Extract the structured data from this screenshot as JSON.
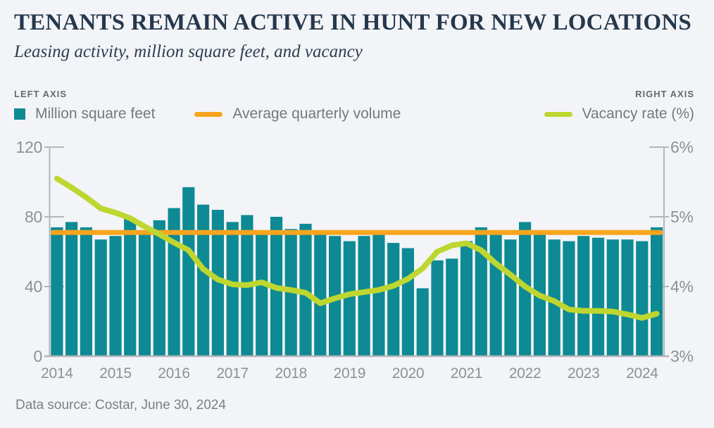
{
  "legend": {
    "left_axis_heading": "LEFT AXIS",
    "right_axis_heading": "RIGHT AXIS"
  },
  "footer": {
    "source": "Data source: Costar, June 30, 2024"
  },
  "chart_data": {
    "type": "bar+line",
    "title": "TENANTS REMAIN ACTIVE IN HUNT FOR NEW LOCATIONS",
    "subtitle": "Leasing activity, million square feet, and vacancy",
    "categories": [
      "2014 Q1",
      "2014 Q2",
      "2014 Q3",
      "2014 Q4",
      "2015 Q1",
      "2015 Q2",
      "2015 Q3",
      "2015 Q4",
      "2016 Q1",
      "2016 Q2",
      "2016 Q3",
      "2016 Q4",
      "2017 Q1",
      "2017 Q2",
      "2017 Q3",
      "2017 Q4",
      "2018 Q1",
      "2018 Q2",
      "2018 Q3",
      "2018 Q4",
      "2019 Q1",
      "2019 Q2",
      "2019 Q3",
      "2019 Q4",
      "2020 Q1",
      "2020 Q2",
      "2020 Q3",
      "2020 Q4",
      "2021 Q1",
      "2021 Q2",
      "2021 Q3",
      "2021 Q4",
      "2022 Q1",
      "2022 Q2",
      "2022 Q3",
      "2022 Q4",
      "2023 Q1",
      "2023 Q2",
      "2023 Q3",
      "2023 Q4",
      "2024 Q1",
      "2024 Q2"
    ],
    "series": {
      "bars": {
        "name": "Million square feet",
        "axis": "left",
        "color": "#0d8a94",
        "values": [
          74,
          77,
          74,
          67,
          69,
          79,
          71,
          78,
          85,
          97,
          87,
          84,
          77,
          81,
          71,
          80,
          73,
          76,
          70,
          69,
          66,
          69,
          70,
          65,
          62,
          39,
          55,
          56,
          66,
          74,
          70,
          67,
          77,
          70,
          67,
          66,
          69,
          68,
          67,
          67,
          66,
          74
        ]
      },
      "average": {
        "name": "Average quarterly volume",
        "axis": "left",
        "color": "#f8a51e",
        "value": 71
      },
      "vacancy": {
        "name": "Vacancy rate (%)",
        "axis": "right",
        "color": "#bed62f",
        "values": [
          5.55,
          5.42,
          5.28,
          5.12,
          5.06,
          4.98,
          4.86,
          4.75,
          4.63,
          4.52,
          4.25,
          4.1,
          4.03,
          4.02,
          4.06,
          3.98,
          3.95,
          3.91,
          3.76,
          3.83,
          3.89,
          3.92,
          3.95,
          4.01,
          4.11,
          4.26,
          4.5,
          4.59,
          4.62,
          4.52,
          4.33,
          4.17,
          4.0,
          3.87,
          3.79,
          3.67,
          3.65,
          3.65,
          3.64,
          3.6,
          3.55,
          3.61
        ]
      }
    },
    "left_axis": {
      "min": 0,
      "max": 120,
      "ticks": [
        0,
        40,
        80,
        120
      ]
    },
    "right_axis": {
      "min": 3,
      "max": 6,
      "ticks": [
        "3%",
        "4%",
        "5%",
        "6%"
      ]
    },
    "x_axis": {
      "year_labels": [
        "2014",
        "2015",
        "2016",
        "2017",
        "2018",
        "2019",
        "2020",
        "2021",
        "2022",
        "2023",
        "2024"
      ]
    },
    "layout_hints": {
      "grid": "off",
      "legend_position": "top",
      "axis_color": "#b2b6ba"
    }
  }
}
